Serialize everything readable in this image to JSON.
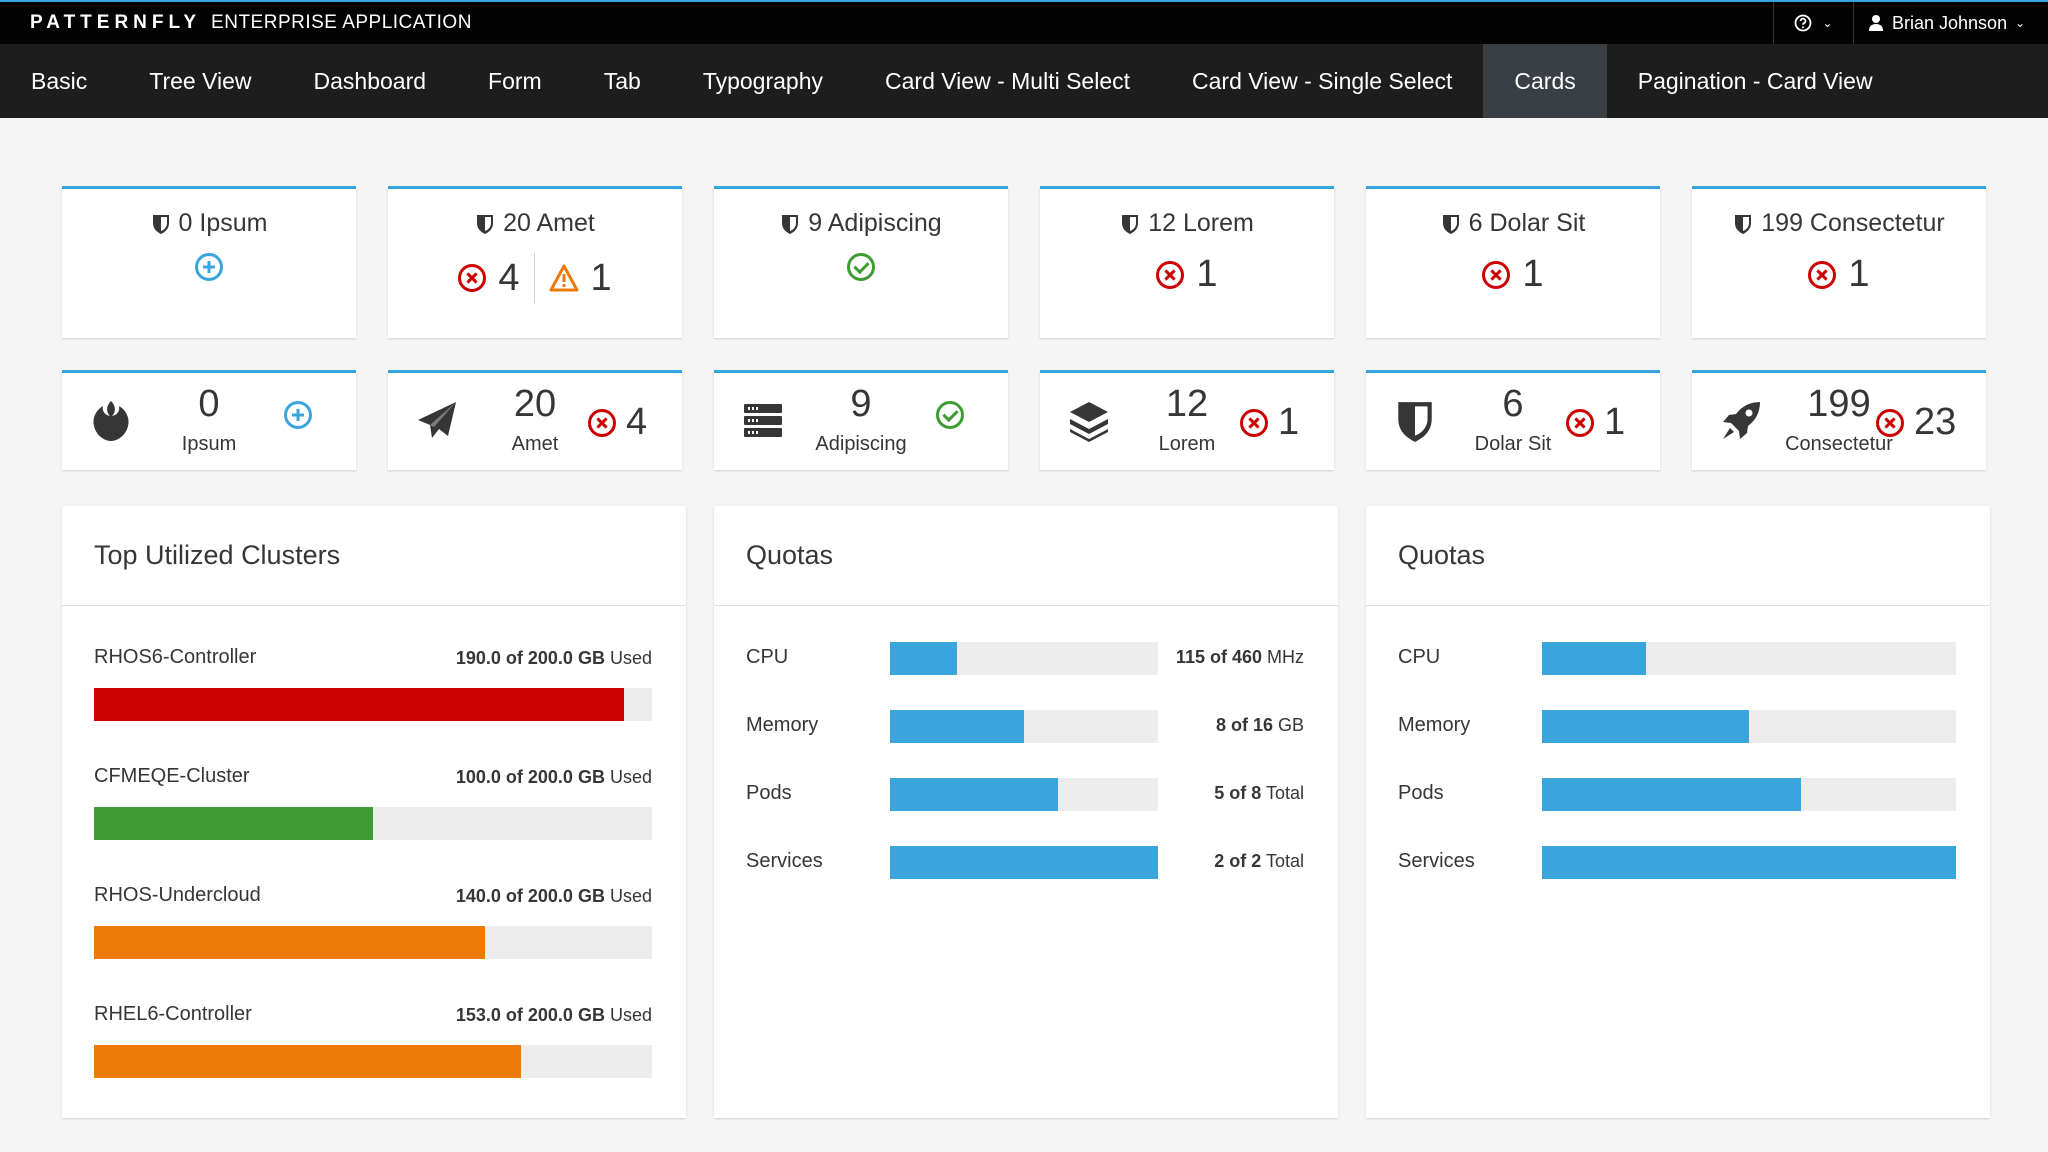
{
  "brand": {
    "name": "PATTERNFLY",
    "subtitle": "ENTERPRISE APPLICATION"
  },
  "utility": {
    "help_icon": "help-icon",
    "user_name": "Brian Johnson"
  },
  "nav": [
    {
      "label": "Basic"
    },
    {
      "label": "Tree View"
    },
    {
      "label": "Dashboard"
    },
    {
      "label": "Form"
    },
    {
      "label": "Tab"
    },
    {
      "label": "Typography"
    },
    {
      "label": "Card View - Multi Select"
    },
    {
      "label": "Card View - Single Select"
    },
    {
      "label": "Cards",
      "active": true
    },
    {
      "label": "Pagination - Card View"
    }
  ],
  "aggregate_cards": [
    {
      "title": "0 Ipsum",
      "icon": "shield-icon",
      "status": [
        {
          "type": "add",
          "count": ""
        }
      ]
    },
    {
      "title": "20 Amet",
      "icon": "shield-icon",
      "status": [
        {
          "type": "error",
          "count": "4"
        },
        {
          "type": "warning",
          "count": "1"
        }
      ]
    },
    {
      "title": "9 Adipiscing",
      "icon": "shield-icon",
      "status": [
        {
          "type": "ok",
          "count": ""
        }
      ]
    },
    {
      "title": "12 Lorem",
      "icon": "shield-icon",
      "status": [
        {
          "type": "error",
          "count": "1"
        }
      ]
    },
    {
      "title": "6 Dolar Sit",
      "icon": "shield-icon",
      "status": [
        {
          "type": "error",
          "count": "1"
        }
      ]
    },
    {
      "title": "199 Consectetur",
      "icon": "shield-icon",
      "status": [
        {
          "type": "error",
          "count": "1"
        }
      ]
    }
  ],
  "mini_cards": [
    {
      "count": "0",
      "label": "Ipsum",
      "icon": "rebel-icon",
      "status": {
        "type": "add",
        "count": ""
      }
    },
    {
      "count": "20",
      "label": "Amet",
      "icon": "paper-plane-icon",
      "status": {
        "type": "error",
        "count": "4"
      }
    },
    {
      "count": "9",
      "label": "Adipiscing",
      "icon": "server-icon",
      "status": {
        "type": "ok",
        "count": ""
      }
    },
    {
      "count": "12",
      "label": "Lorem",
      "icon": "stack-icon",
      "status": {
        "type": "error",
        "count": "1"
      }
    },
    {
      "count": "6",
      "label": "Dolar Sit",
      "icon": "shield-icon",
      "status": {
        "type": "error",
        "count": "1"
      }
    },
    {
      "count": "199",
      "label": "Consectetur",
      "icon": "rocket-icon",
      "status": {
        "type": "error",
        "count": "23"
      }
    }
  ],
  "clusters": {
    "title": "Top Utilized Clusters",
    "items": [
      {
        "name": "RHOS6-Controller",
        "used": "190.0 of 200.0 GB",
        "suffix": "Used",
        "fraction": 0.95,
        "color": "#cc0000"
      },
      {
        "name": "CFMEQE-Cluster",
        "used": "100.0 of 200.0 GB",
        "suffix": "Used",
        "fraction": 0.5,
        "color": "#3f9c35"
      },
      {
        "name": "RHOS-Undercloud",
        "used": "140.0 of 200.0 GB",
        "suffix": "Used",
        "fraction": 0.7,
        "color": "#ec7a08"
      },
      {
        "name": "RHEL6-Controller",
        "used": "153.0 of 200.0 GB",
        "suffix": "Used",
        "fraction": 0.765,
        "color": "#ec7a08"
      }
    ]
  },
  "quotas_1": {
    "title": "Quotas",
    "items": [
      {
        "name": "CPU",
        "value": "115 of 460",
        "unit": "MHz",
        "fraction": 0.25
      },
      {
        "name": "Memory",
        "value": "8 of 16",
        "unit": "GB",
        "fraction": 0.5
      },
      {
        "name": "Pods",
        "value": "5 of 8",
        "unit": "Total",
        "fraction": 0.625
      },
      {
        "name": "Services",
        "value": "2 of 2",
        "unit": "Total",
        "fraction": 1.0
      }
    ]
  },
  "quotas_2": {
    "title": "Quotas",
    "items": [
      {
        "name": "CPU",
        "fraction": 0.25
      },
      {
        "name": "Memory",
        "fraction": 0.5
      },
      {
        "name": "Pods",
        "fraction": 0.625
      },
      {
        "name": "Services",
        "fraction": 1.0
      }
    ]
  }
}
